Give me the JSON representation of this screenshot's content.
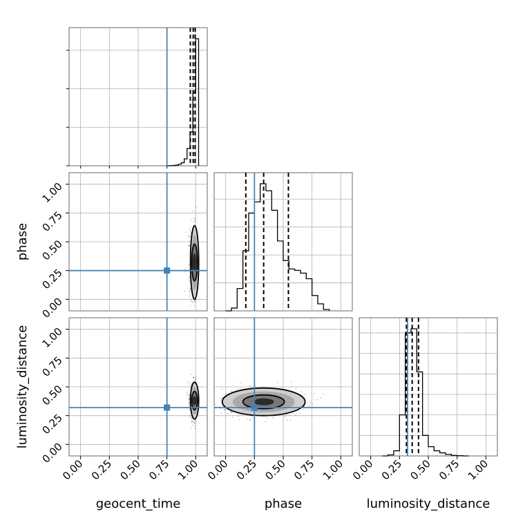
{
  "chart_data": {
    "type": "corner",
    "parameters": [
      {
        "name": "geocent_time",
        "label": "geocent_time",
        "truth": 0.75,
        "quantiles": [
          0.953,
          0.978,
          0.995
        ]
      },
      {
        "name": "phase",
        "label": "phase",
        "truth": 0.25,
        "quantiles": [
          0.175,
          0.33,
          0.545
        ]
      },
      {
        "name": "luminosity_distance",
        "label": "luminosity_distance",
        "truth": 0.32,
        "quantiles": [
          0.31,
          0.36,
          0.415
        ]
      }
    ],
    "range": [
      -0.1,
      1.1
    ],
    "ticks": [
      0.0,
      0.25,
      0.5,
      0.75,
      1.0
    ],
    "tick_labels": [
      "0.00",
      "0.25",
      "0.50",
      "0.75",
      "1.00"
    ],
    "grid": true,
    "colors": {
      "truth": "#4682b4",
      "hist": "#000000",
      "quantile": "#000000",
      "points": "#555555"
    },
    "histograms": {
      "geocent_time": {
        "bin_edges": [
          0.75,
          0.775,
          0.8,
          0.825,
          0.85,
          0.875,
          0.9,
          0.925,
          0.95,
          0.975,
          1.0,
          1.025
        ],
        "counts": [
          0,
          0.3,
          0.8,
          1.8,
          4,
          8,
          18,
          45,
          88,
          190,
          330
        ]
      },
      "phase": {
        "bin_edges": [
          0.0,
          0.05,
          0.1,
          0.15,
          0.2,
          0.25,
          0.3,
          0.35,
          0.4,
          0.45,
          0.5,
          0.55,
          0.6,
          0.65,
          0.7,
          0.75,
          0.8,
          0.85,
          0.9
        ],
        "counts": [
          0,
          2,
          16,
          43,
          70,
          78,
          91,
          86,
          72,
          50,
          36,
          30,
          29,
          27,
          23,
          11,
          5,
          1
        ]
      },
      "luminosity_distance": {
        "bin_edges": [
          0.1,
          0.15,
          0.2,
          0.25,
          0.3,
          0.35,
          0.4,
          0.45,
          0.5,
          0.55,
          0.6,
          0.65,
          0.7,
          0.75,
          0.8,
          0.85
        ],
        "counts": [
          0,
          1,
          5,
          40,
          120,
          124,
          82,
          20,
          9,
          5,
          3,
          1.5,
          0.5,
          0.2,
          0
        ]
      }
    },
    "scatter_2d": [
      {
        "x": "geocent_time",
        "y": "phase",
        "center": [
          0.99,
          0.32
        ],
        "spread": [
          0.018,
          0.16
        ]
      },
      {
        "x": "geocent_time",
        "y": "luminosity_distance",
        "center": [
          0.99,
          0.38
        ],
        "spread": [
          0.018,
          0.08
        ]
      },
      {
        "x": "phase",
        "y": "luminosity_distance",
        "center": [
          0.33,
          0.37
        ],
        "spread": [
          0.18,
          0.06
        ]
      }
    ]
  }
}
